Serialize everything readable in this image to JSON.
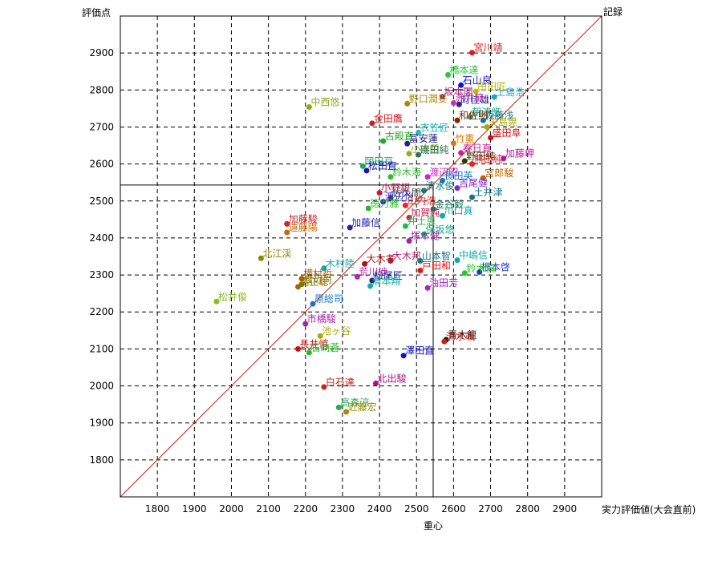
{
  "chart_data": {
    "type": "scatter",
    "title": "",
    "ylabel": "評価点",
    "xlabel": "実力評価値(大会直前)",
    "top_right_label": "記録",
    "centroid_label": "重心",
    "xlim": [
      1700,
      3000
    ],
    "ylim": [
      1700,
      3000
    ],
    "x_ticks": [
      1800,
      1900,
      2000,
      2100,
      2200,
      2300,
      2400,
      2500,
      2600,
      2700,
      2800,
      2900
    ],
    "y_ticks": [
      1800,
      1900,
      2000,
      2100,
      2200,
      2300,
      2400,
      2500,
      2600,
      2700,
      2800,
      2900
    ],
    "grid": true,
    "diagonal": true,
    "centroid": {
      "x": 2545,
      "y": 2543
    },
    "colors": {
      "diagonal": "#cc2200",
      "grid": "#000000",
      "centroid": "#000000"
    },
    "points": [
      {
        "name": "宮川靖",
        "x": 2650,
        "y": 2901,
        "color": "#ee1111"
      },
      {
        "name": "橋本達",
        "x": 2585,
        "y": 2841,
        "color": "#22cc33"
      },
      {
        "name": "石山良",
        "x": 2620,
        "y": 2813,
        "color": "#1111ee"
      },
      {
        "name": "田田匠",
        "x": 2660,
        "y": 2796,
        "color": "#bbbb00"
      },
      {
        "name": "上島浩",
        "x": 2710,
        "y": 2781,
        "color": "#11aacc"
      },
      {
        "name": "坂本閣",
        "x": 2570,
        "y": 2782,
        "color": "#aa2288"
      },
      {
        "name": "野口潤妥",
        "x": 2475,
        "y": 2763,
        "color": "#aa8800"
      },
      {
        "name": "町佳雄",
        "x": 2615,
        "y": 2761,
        "color": "#2222aa"
      },
      {
        "name": "赤井範",
        "x": 2600,
        "y": 2765,
        "color": "#cc3399"
      },
      {
        "name": "中西悠",
        "x": 2210,
        "y": 2754,
        "color": "#88aa11"
      },
      {
        "name": "朝浦悠",
        "x": 2645,
        "y": 2727,
        "color": "#11aa88"
      },
      {
        "name": "和佐則",
        "x": 2610,
        "y": 2718,
        "color": "#882200"
      },
      {
        "name": "森藤浅",
        "x": 2680,
        "y": 2718,
        "color": "#117788"
      },
      {
        "name": "金田鷹",
        "x": 2380,
        "y": 2710,
        "color": "#cc2222"
      },
      {
        "name": "衣笠匠",
        "x": 2505,
        "y": 2685,
        "color": "#22bbbb"
      },
      {
        "name": "矢島晃",
        "x": 2690,
        "y": 2700,
        "color": "#aaaa00"
      },
      {
        "name": "盛田阜",
        "x": 2700,
        "y": 2671,
        "color": "#cc1111"
      },
      {
        "name": "古殿直",
        "x": 2410,
        "y": 2662,
        "color": "#22aa22"
      },
      {
        "name": "冨安蓮",
        "x": 2475,
        "y": 2655,
        "color": "#222288"
      },
      {
        "name": "竹重",
        "x": 2600,
        "y": 2656,
        "color": "#dd7700"
      },
      {
        "name": "春日直",
        "x": 2620,
        "y": 2630,
        "color": "#cc2299"
      },
      {
        "name": "加藤岬",
        "x": 2735,
        "y": 2615,
        "color": "#bb1199"
      },
      {
        "name": "小木哲",
        "x": 2480,
        "y": 2628,
        "color": "#99aa22"
      },
      {
        "name": "磯田純",
        "x": 2505,
        "y": 2625,
        "color": "#227755"
      },
      {
        "name": "野田純",
        "x": 2630,
        "y": 2608,
        "color": "#333300"
      },
      {
        "name": "熊田純",
        "x": 2650,
        "y": 2600,
        "color": "#ee2222"
      },
      {
        "name": "岡田亘",
        "x": 2355,
        "y": 2594,
        "color": "#22aa55"
      },
      {
        "name": "松田直",
        "x": 2365,
        "y": 2582,
        "color": "#1111cc"
      },
      {
        "name": "鈴木海",
        "x": 2430,
        "y": 2565,
        "color": "#33bb33"
      },
      {
        "name": "渡辺昭",
        "x": 2530,
        "y": 2565,
        "color": "#cc22cc"
      },
      {
        "name": "宮郎駿",
        "x": 2680,
        "y": 2562,
        "color": "#bb6600"
      },
      {
        "name": "長田英",
        "x": 2570,
        "y": 2555,
        "color": "#1177cc"
      },
      {
        "name": "吉尾健",
        "x": 2610,
        "y": 2535,
        "color": "#8822cc"
      },
      {
        "name": "清水俊",
        "x": 2520,
        "y": 2528,
        "color": "#117777"
      },
      {
        "name": "小野銀",
        "x": 2400,
        "y": 2522,
        "color": "#cc1144"
      },
      {
        "name": "佐久間",
        "x": 2430,
        "y": 2508,
        "color": "#555555"
      },
      {
        "name": "土井津",
        "x": 2650,
        "y": 2510,
        "color": "#117788"
      },
      {
        "name": "渡辺怡",
        "x": 2410,
        "y": 2498,
        "color": "#2222cc"
      },
      {
        "name": "山内浩",
        "x": 2470,
        "y": 2488,
        "color": "#ee2222"
      },
      {
        "name": "徳力雅",
        "x": 2370,
        "y": 2480,
        "color": "#22bb22"
      },
      {
        "name": "金谷毅",
        "x": 2545,
        "y": 2478,
        "color": "#117755"
      },
      {
        "name": "川口真",
        "x": 2570,
        "y": 2460,
        "color": "#11aaaa"
      },
      {
        "name": "加賀純",
        "x": 2480,
        "y": 2455,
        "color": "#cc2255"
      },
      {
        "name": "加藤駿",
        "x": 2150,
        "y": 2438,
        "color": "#cc2222"
      },
      {
        "name": "遠藤陽",
        "x": 2150,
        "y": 2415,
        "color": "#cc6600"
      },
      {
        "name": "井土恵",
        "x": 2470,
        "y": 2432,
        "color": "#22bb44"
      },
      {
        "name": "加藤信",
        "x": 2320,
        "y": 2428,
        "color": "#2222aa"
      },
      {
        "name": "保坂悠",
        "x": 2520,
        "y": 2410,
        "color": "#11aa88"
      },
      {
        "name": "塚本健",
        "x": 2480,
        "y": 2392,
        "color": "#aa22aa"
      },
      {
        "name": "大木邦",
        "x": 2430,
        "y": 2338,
        "color": "#aa2266"
      },
      {
        "name": "山本智",
        "x": 2510,
        "y": 2338,
        "color": "#117788"
      },
      {
        "name": "中嶋信",
        "x": 2610,
        "y": 2340,
        "color": "#11aaaa"
      },
      {
        "name": "北江渓",
        "x": 2080,
        "y": 2345,
        "color": "#888800"
      },
      {
        "name": "大木孝",
        "x": 2360,
        "y": 2330,
        "color": "#aa1111"
      },
      {
        "name": "戸田和",
        "x": 2510,
        "y": 2312,
        "color": "#ee1111"
      },
      {
        "name": "木村陸",
        "x": 2250,
        "y": 2318,
        "color": "#11aaaa"
      },
      {
        "name": "根本啓",
        "x": 2670,
        "y": 2308,
        "color": "#1133dd"
      },
      {
        "name": "鈴木慎",
        "x": 2630,
        "y": 2305,
        "color": "#22cc22"
      },
      {
        "name": "荒川渉",
        "x": 2340,
        "y": 2295,
        "color": "#bb22bb"
      },
      {
        "name": "松尾匠",
        "x": 2380,
        "y": 2285,
        "color": "#222288"
      },
      {
        "name": "横村哲",
        "x": 2190,
        "y": 2290,
        "color": "#aa5500"
      },
      {
        "name": "渡辺尚",
        "x": 2190,
        "y": 2275,
        "color": "#558800"
      },
      {
        "name": "清本翔",
        "x": 2375,
        "y": 2270,
        "color": "#11aaaa"
      },
      {
        "name": "高正聡",
        "x": 2180,
        "y": 2268,
        "color": "#aa6600"
      },
      {
        "name": "油田芳",
        "x": 2530,
        "y": 2265,
        "color": "#aa22cc"
      },
      {
        "name": "松井俊",
        "x": 1960,
        "y": 2228,
        "color": "#88bb22"
      },
      {
        "name": "原総司",
        "x": 2220,
        "y": 2222,
        "color": "#1177cc"
      },
      {
        "name": "市橋駿",
        "x": 2200,
        "y": 2168,
        "color": "#aa22aa"
      },
      {
        "name": "池ヶ谷",
        "x": 2240,
        "y": 2135,
        "color": "#aaaa00"
      },
      {
        "name": "青木龍",
        "x": 2580,
        "y": 2125,
        "color": "#111111"
      },
      {
        "name": "清水颯",
        "x": 2575,
        "y": 2120,
        "color": "#cc2211"
      },
      {
        "name": "長井慎",
        "x": 2180,
        "y": 2100,
        "color": "#cc1111"
      },
      {
        "name": "石崎蒼",
        "x": 2210,
        "y": 2090,
        "color": "#22bb22"
      },
      {
        "name": "澤田直",
        "x": 2465,
        "y": 2082,
        "color": "#1111cc"
      },
      {
        "name": "北出駿",
        "x": 2390,
        "y": 2007,
        "color": "#aa1188"
      },
      {
        "name": "白石達",
        "x": 2250,
        "y": 1997,
        "color": "#cc2211"
      },
      {
        "name": "高森涼",
        "x": 2290,
        "y": 1942,
        "color": "#22aa55"
      },
      {
        "name": "近藤宏",
        "x": 2310,
        "y": 1930,
        "color": "#aa8800"
      }
    ]
  }
}
